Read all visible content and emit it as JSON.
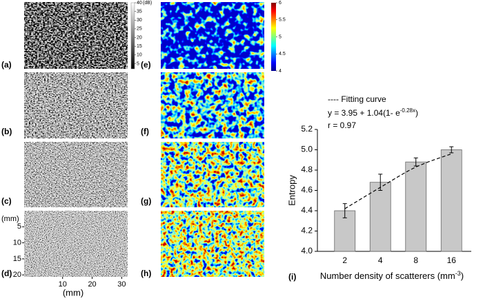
{
  "panels": {
    "bmode_labels": [
      "(a)",
      "(b)",
      "(c)",
      "(d)"
    ],
    "entropy_labels": [
      "(e)",
      "(f)",
      "(g)",
      "(h)"
    ],
    "bmode_colorbar": {
      "ticks": [
        5,
        10,
        15,
        20,
        25,
        30,
        35,
        40
      ],
      "lim": [
        2,
        40
      ],
      "unit": "(dB)"
    },
    "entropy_colorbar": {
      "ticks": [
        4,
        4.5,
        5,
        5.5,
        6
      ],
      "lim": [
        4,
        6
      ]
    },
    "bmode_axes": {
      "xlim": [
        -3,
        32
      ],
      "xticks": [
        10,
        20,
        30
      ],
      "xlabel": "(mm)",
      "ylim": [
        0,
        20.6
      ],
      "yticks": [
        5,
        10,
        15,
        20
      ],
      "ylabel": "(mm)"
    }
  },
  "chart_data": {
    "type": "bar",
    "panel_label": "(i)",
    "categories": [
      "2",
      "4",
      "8",
      "16"
    ],
    "values": [
      4.4,
      4.68,
      4.88,
      5.0
    ],
    "errors": [
      0.07,
      0.08,
      0.04,
      0.03
    ],
    "color": "#c8c8c8",
    "fit": {
      "values": [
        4.42,
        4.63,
        4.83,
        4.96
      ]
    },
    "legend": "---- Fitting curve",
    "equation": {
      "text": "y = 3.95 + 1.04(1- e",
      "sup": "-0.28x",
      "tail": ")"
    },
    "r_text": "r = 0.97",
    "ylabel": "Entropy",
    "xlabel": {
      "text": "Number density of scatterers (mm",
      "sup": "-3",
      "tail": ")"
    },
    "ylim": [
      4.0,
      5.2
    ],
    "yticks": [
      {
        "value": 4.0,
        "label": "4.0"
      },
      {
        "value": 4.2,
        "label": "4.2"
      },
      {
        "value": 4.4,
        "label": "4.4"
      },
      {
        "value": 4.6,
        "label": "4.6"
      },
      {
        "value": 4.8,
        "label": "4.8"
      },
      {
        "value": 5.0,
        "label": "5.0"
      },
      {
        "value": 5.2,
        "label": "5.2"
      }
    ]
  }
}
